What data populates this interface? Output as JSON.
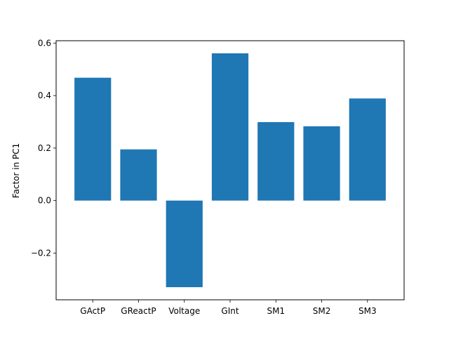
{
  "chart_data": {
    "type": "bar",
    "categories": [
      "GActP",
      "GReactP",
      "Voltage",
      "GInt",
      "SM1",
      "SM2",
      "SM3"
    ],
    "values": [
      0.468,
      0.195,
      -0.33,
      0.561,
      0.299,
      0.283,
      0.389
    ],
    "title": "",
    "xlabel": "",
    "ylabel": "Factor in PC1",
    "ylim": [
      -0.378,
      0.609
    ],
    "yticks": [
      -0.2,
      0.0,
      0.2,
      0.4,
      0.6
    ],
    "ytick_labels": [
      "−0.2",
      "0.0",
      "0.2",
      "0.4",
      "0.6"
    ],
    "grid": false,
    "bar_color": "#1f77b4"
  }
}
